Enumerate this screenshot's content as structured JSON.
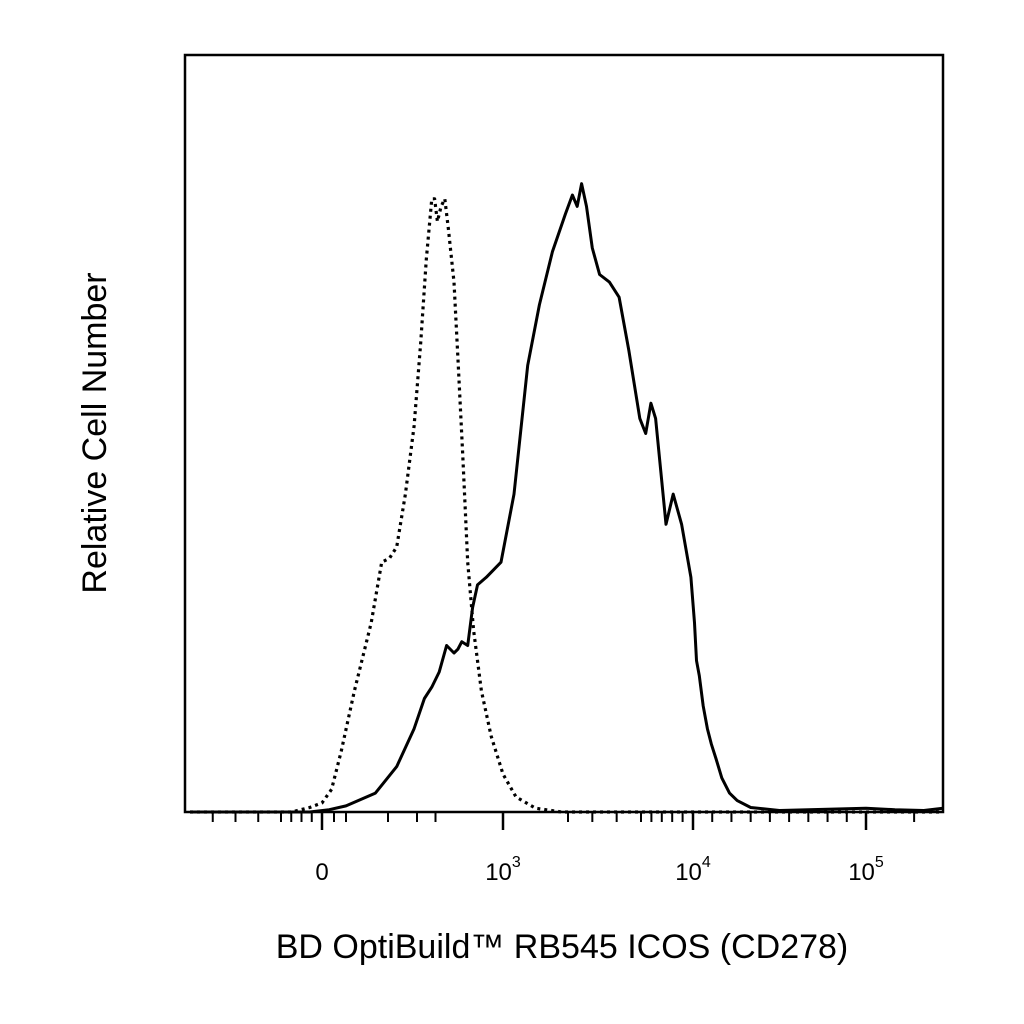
{
  "chart_data": {
    "type": "line",
    "title": "",
    "xlabel": "BD OptiBuild™ RB545 ICOS (CD278)",
    "ylabel": "Relative Cell Number",
    "x_scale": "biexponential",
    "xlim": [
      -600,
      180000
    ],
    "ylim": [
      0,
      100
    ],
    "grid": false,
    "legend": "none",
    "tick_labels": [
      {
        "value": 0,
        "base": "0",
        "exp": ""
      },
      {
        "value": 1000,
        "base": "10",
        "exp": "3"
      },
      {
        "value": 10000,
        "base": "10",
        "exp": "4"
      },
      {
        "value": 100000,
        "base": "10",
        "exp": "5"
      }
    ],
    "series": [
      {
        "style": "dotted",
        "color": "#000000",
        "points": [
          [
            -600,
            0
          ],
          [
            -150,
            0
          ],
          [
            -60,
            0.6
          ],
          [
            0,
            1.2
          ],
          [
            40,
            3
          ],
          [
            80,
            8
          ],
          [
            120,
            16
          ],
          [
            160,
            25
          ],
          [
            185,
            33
          ],
          [
            205,
            33.5
          ],
          [
            230,
            35
          ],
          [
            260,
            42
          ],
          [
            290,
            51
          ],
          [
            320,
            62
          ],
          [
            350,
            73
          ],
          [
            380,
            81
          ],
          [
            395,
            81
          ],
          [
            410,
            78
          ],
          [
            430,
            80
          ],
          [
            450,
            81
          ],
          [
            470,
            77
          ],
          [
            500,
            70
          ],
          [
            540,
            60
          ],
          [
            590,
            47
          ],
          [
            640,
            33
          ],
          [
            700,
            24
          ],
          [
            780,
            16
          ],
          [
            880,
            10
          ],
          [
            1000,
            5
          ],
          [
            1200,
            2
          ],
          [
            1500,
            0.5
          ],
          [
            1900,
            0
          ],
          [
            180000,
            0
          ]
        ]
      },
      {
        "style": "solid",
        "color": "#000000",
        "points": [
          [
            -600,
            0
          ],
          [
            -60,
            0
          ],
          [
            30,
            0.3
          ],
          [
            100,
            0.8
          ],
          [
            170,
            2.5
          ],
          [
            230,
            6
          ],
          [
            290,
            11
          ],
          [
            340,
            15
          ],
          [
            380,
            16.5
          ],
          [
            420,
            18.5
          ],
          [
            460,
            22
          ],
          [
            500,
            21
          ],
          [
            540,
            21.5
          ],
          [
            580,
            22.5
          ],
          [
            640,
            22
          ],
          [
            690,
            27
          ],
          [
            740,
            30
          ],
          [
            830,
            31
          ],
          [
            980,
            33
          ],
          [
            1170,
            42
          ],
          [
            1380,
            59
          ],
          [
            1560,
            67
          ],
          [
            1760,
            74
          ],
          [
            1960,
            79
          ],
          [
            2180,
            81.5
          ],
          [
            2380,
            80
          ],
          [
            2560,
            83
          ],
          [
            2760,
            80
          ],
          [
            3000,
            74.5
          ],
          [
            3300,
            71
          ],
          [
            3700,
            70
          ],
          [
            4100,
            68
          ],
          [
            4500,
            61
          ],
          [
            4950,
            52
          ],
          [
            5450,
            50
          ],
          [
            5950,
            54
          ],
          [
            6400,
            52
          ],
          [
            6900,
            45
          ],
          [
            7400,
            38
          ],
          [
            8100,
            42
          ],
          [
            8900,
            38
          ],
          [
            9800,
            31
          ],
          [
            10800,
            25
          ],
          [
            11800,
            20
          ],
          [
            13300,
            18
          ],
          [
            15300,
            14
          ],
          [
            17500,
            11
          ],
          [
            19500,
            9
          ],
          [
            22000,
            7
          ],
          [
            25000,
            4.5
          ],
          [
            29000,
            2.5
          ],
          [
            33000,
            1.5
          ],
          [
            40000,
            0.6
          ],
          [
            55000,
            0.2
          ],
          [
            100000,
            0.5
          ],
          [
            130000,
            0.3
          ],
          [
            160000,
            0.2
          ],
          [
            180000,
            0.5
          ]
        ]
      }
    ]
  }
}
